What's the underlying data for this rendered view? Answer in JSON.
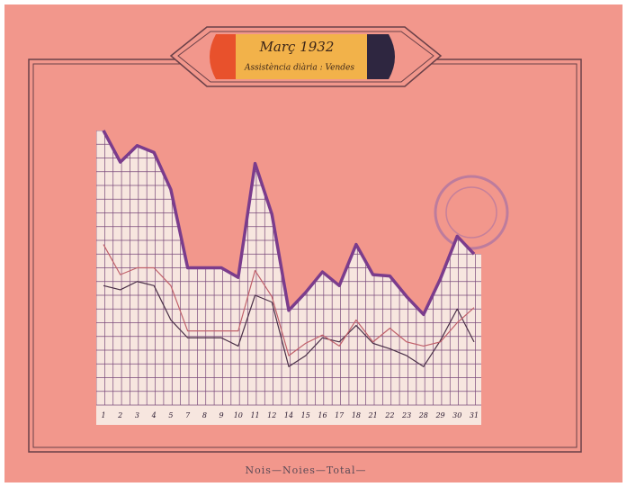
{
  "chart_data": {
    "type": "line",
    "title": "Març 1932",
    "subtitle": "Assistència diària : Vendes",
    "caption": "Nois—Noies—Total—",
    "categories": [
      "1",
      "2",
      "3",
      "4",
      "5",
      "7",
      "8",
      "9",
      "10",
      "11",
      "12",
      "14",
      "15",
      "16",
      "17",
      "18",
      "21",
      "22",
      "23",
      "28",
      "29",
      "30",
      "31"
    ],
    "ylim": [
      0,
      20
    ],
    "series": [
      {
        "name": "Total",
        "color": "#7b3c8c",
        "values": [
          20.0,
          17.7,
          18.9,
          18.4,
          15.7,
          10.0,
          10.0,
          10.0,
          9.3,
          17.6,
          13.9,
          6.9,
          8.2,
          9.7,
          8.7,
          11.7,
          9.5,
          9.4,
          7.9,
          6.6,
          9.2,
          12.3,
          11.0
        ]
      },
      {
        "name": "Noies",
        "color": "#c0606a",
        "values": [
          11.7,
          9.5,
          10.0,
          10.0,
          8.7,
          5.4,
          5.4,
          5.4,
          5.4,
          9.8,
          7.9,
          3.6,
          4.5,
          5.1,
          4.3,
          6.2,
          4.6,
          5.6,
          4.6,
          4.3,
          4.6,
          6.0,
          7.1
        ]
      },
      {
        "name": "Nois",
        "color": "#4a3048",
        "values": [
          8.7,
          8.4,
          9.0,
          8.7,
          6.2,
          4.9,
          4.9,
          4.9,
          4.3,
          8.0,
          7.5,
          2.8,
          3.6,
          4.9,
          4.6,
          5.8,
          4.5,
          4.1,
          3.6,
          2.8,
          4.7,
          7.0,
          4.6
        ]
      }
    ]
  }
}
